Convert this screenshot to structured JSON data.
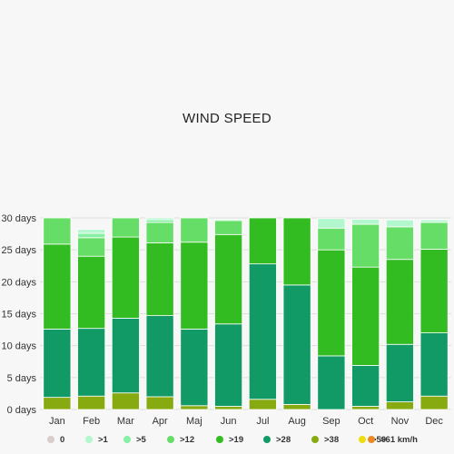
{
  "chart_data": {
    "type": "bar",
    "title": "WIND SPEED",
    "categories": [
      "Jan",
      "Feb",
      "Mar",
      "Apr",
      "Maj",
      "Jun",
      "Jul",
      "Aug",
      "Sep",
      "Oct",
      "Nov",
      "Dec"
    ],
    "ylim": [
      0,
      30
    ],
    "yticks": [
      "0 days",
      "5 days",
      "10 days",
      "15 days",
      "20 days",
      "25 days",
      "30 days"
    ],
    "series": [
      {
        "name": "0",
        "color": "#d9cccc",
        "values": [
          0,
          0,
          0,
          0,
          0,
          0,
          0,
          0,
          0,
          0,
          0,
          0
        ]
      },
      {
        "name": ">1",
        "color": "#b3f7cf",
        "values": [
          0,
          0.6,
          0,
          0.3,
          0,
          0.2,
          0,
          0,
          1.5,
          0.8,
          1.1,
          0.4
        ]
      },
      {
        "name": ">5",
        "color": "#87f0a5",
        "values": [
          0,
          0.7,
          0,
          0.4,
          0,
          0,
          0,
          0,
          0,
          0,
          0,
          0
        ]
      },
      {
        "name": ">12",
        "color": "#66dd66",
        "values": [
          4.1,
          2.9,
          3.0,
          3.2,
          3.8,
          2.2,
          0,
          0,
          3.4,
          6.7,
          5.1,
          4.2
        ]
      },
      {
        "name": ">19",
        "color": "#33bb22",
        "values": [
          13.3,
          11.3,
          12.7,
          11.4,
          13.6,
          14.0,
          7.2,
          10.5,
          16.6,
          15.4,
          13.3,
          13.1
        ]
      },
      {
        "name": ">28",
        "color": "#119966",
        "values": [
          10.7,
          10.6,
          11.7,
          12.7,
          12.0,
          12.9,
          21.2,
          18.7,
          8.4,
          6.4,
          9.0,
          9.9
        ]
      },
      {
        "name": ">38",
        "color": "#88aa11",
        "values": [
          1.9,
          2.1,
          2.6,
          2.0,
          0.6,
          0.5,
          1.6,
          0.8,
          0,
          0.5,
          1.2,
          2.1
        ]
      },
      {
        "name": ">50",
        "color": "#eedd11",
        "values": [
          0,
          0,
          0,
          0,
          0,
          0,
          0,
          0,
          0,
          0,
          0,
          0
        ]
      },
      {
        "name": ">61 km/h",
        "color": "#ee8822",
        "values": [
          0,
          0,
          0,
          0,
          0,
          0,
          0,
          0,
          0,
          0,
          0,
          0
        ]
      }
    ]
  }
}
